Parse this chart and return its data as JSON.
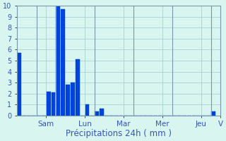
{
  "xlabel": "Précipitations 24h ( mm )",
  "bar_color": "#0044dd",
  "bar_edge_color": "#0044dd",
  "background_color": "#d8f5f0",
  "grid_color": "#99cccc",
  "axis_label_color": "#3355bb",
  "tick_label_color": "#3355bb",
  "spine_color": "#7799aa",
  "ylim": [
    0,
    10
  ],
  "yticks": [
    0,
    1,
    2,
    3,
    4,
    5,
    6,
    7,
    8,
    9,
    10
  ],
  "bar_values": [
    5.7,
    0,
    0,
    0,
    0,
    0,
    2.2,
    2.1,
    10.0,
    9.7,
    2.8,
    3.0,
    5.1,
    0,
    1.0,
    0,
    0.35,
    0.65,
    0,
    0,
    0,
    0,
    0,
    0,
    0,
    0,
    0,
    0,
    0,
    0,
    0,
    0,
    0,
    0,
    0,
    0,
    0,
    0,
    0,
    0,
    0.35
  ],
  "n_bars": 41,
  "bars_per_day": 4,
  "day_labels": [
    "Sam",
    "Lun",
    "Mar",
    "Mer",
    "Jeu",
    "V"
  ],
  "day_tick_positions": [
    5.5,
    13.5,
    21.5,
    29.5,
    37.5,
    41.5
  ],
  "day_separator_positions": [
    3.5,
    7.5,
    15.5,
    23.5,
    31.5,
    39.5
  ],
  "xlabel_fontsize": 8.5,
  "tick_fontsize": 7,
  "day_tick_fontsize": 7.5
}
